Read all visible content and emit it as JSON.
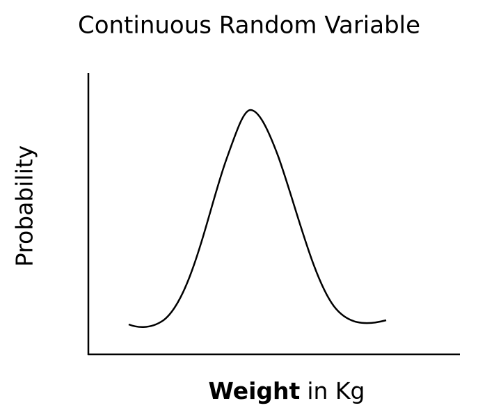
{
  "title": "Continuous Random Variable",
  "y_axis_label": "Probability",
  "x_axis_label": [
    "Weight",
    "in Kg"
  ]
}
